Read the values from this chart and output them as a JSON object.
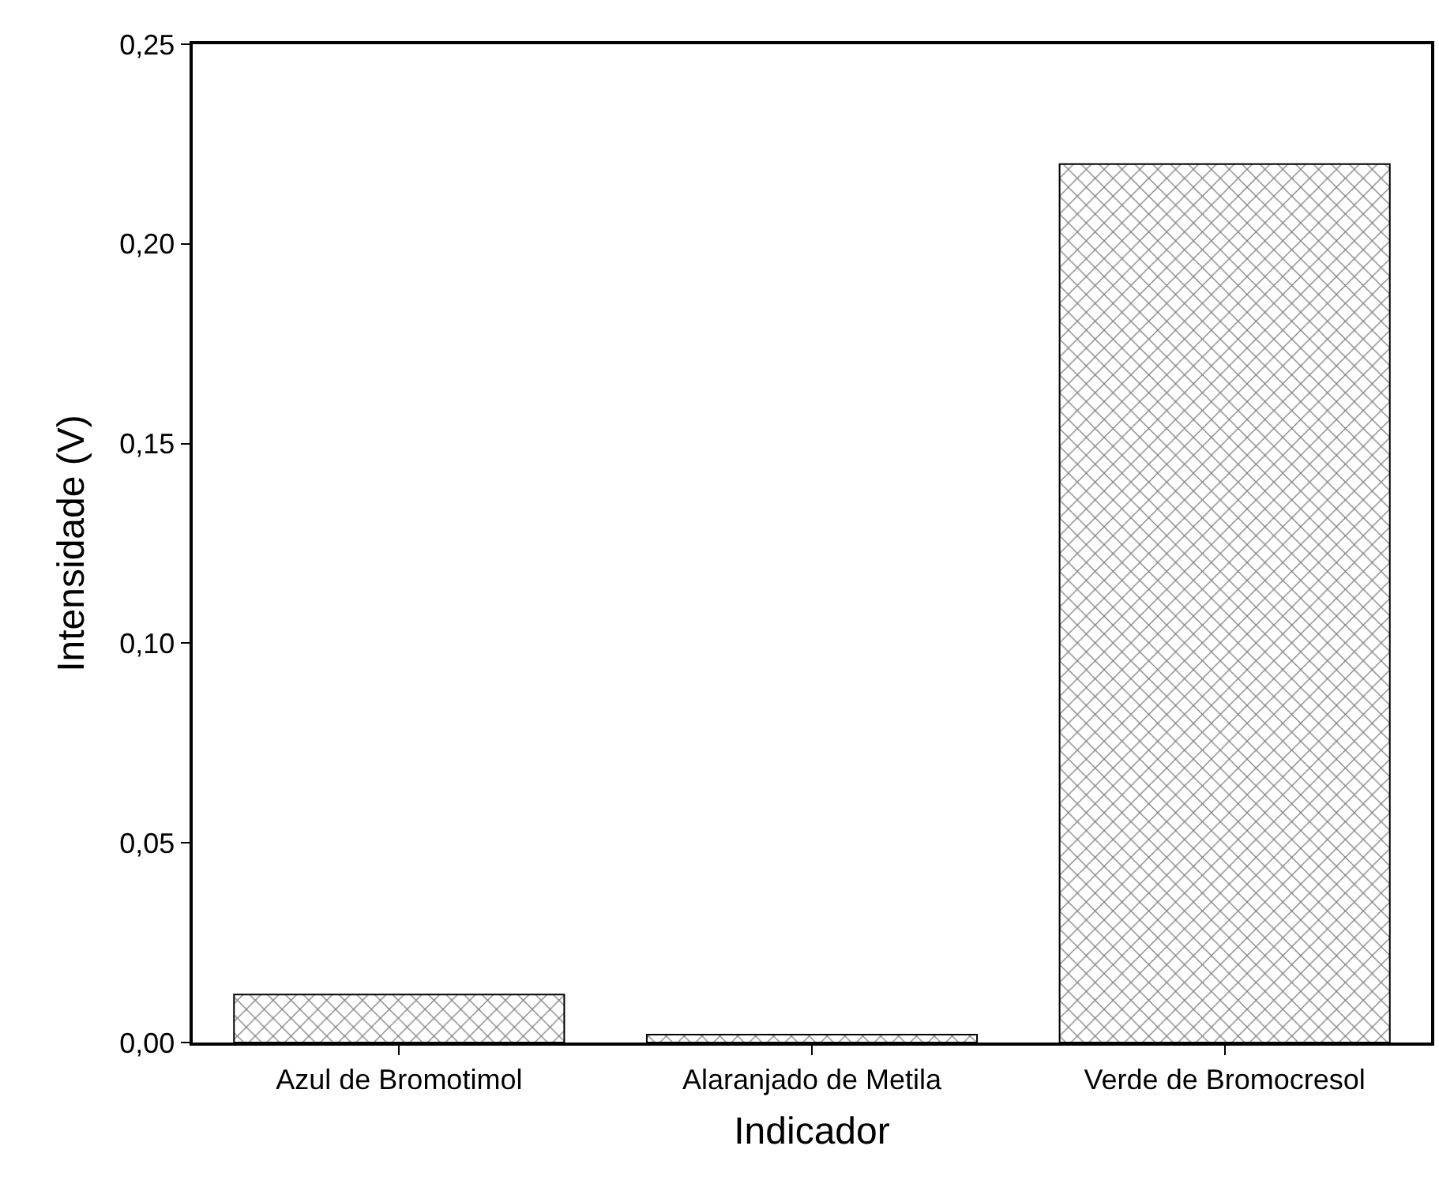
{
  "chart_data": {
    "type": "bar",
    "xlabel": "Indicador",
    "ylabel": "Intensidade (V)",
    "categories": [
      "Azul de Bromotimol",
      "Alaranjado de Metila",
      "Verde de Bromocresol"
    ],
    "values": [
      0.012,
      0.002,
      0.22
    ],
    "color": "#000000",
    "ylim": [
      0,
      0.25
    ],
    "yticks": [
      {
        "value": 0,
        "label": "0,00"
      },
      {
        "value": 0.05,
        "label": "0,05"
      },
      {
        "value": 0.1,
        "label": "0,10"
      },
      {
        "value": 0.15,
        "label": "0,15"
      },
      {
        "value": 0.2,
        "label": "0,20"
      },
      {
        "value": 0.25,
        "label": "0,25"
      }
    ]
  }
}
